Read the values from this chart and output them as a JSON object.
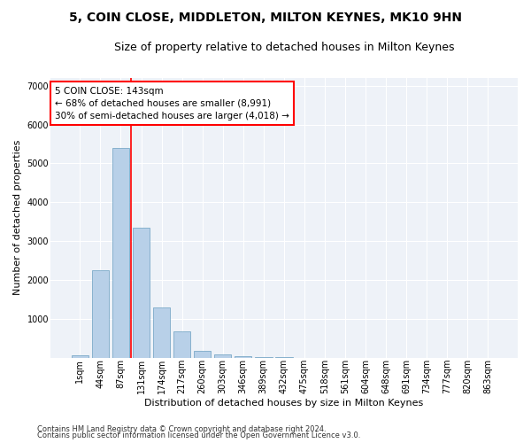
{
  "title": "5, COIN CLOSE, MIDDLETON, MILTON KEYNES, MK10 9HN",
  "subtitle": "Size of property relative to detached houses in Milton Keynes",
  "xlabel": "Distribution of detached houses by size in Milton Keynes",
  "ylabel": "Number of detached properties",
  "footer_line1": "Contains HM Land Registry data © Crown copyright and database right 2024.",
  "footer_line2": "Contains public sector information licensed under the Open Government Licence v3.0.",
  "categories": [
    "1sqm",
    "44sqm",
    "87sqm",
    "131sqm",
    "174sqm",
    "217sqm",
    "260sqm",
    "303sqm",
    "346sqm",
    "389sqm",
    "432sqm",
    "475sqm",
    "518sqm",
    "561sqm",
    "604sqm",
    "648sqm",
    "691sqm",
    "734sqm",
    "777sqm",
    "820sqm",
    "863sqm"
  ],
  "values": [
    50,
    2250,
    5400,
    3350,
    1300,
    680,
    175,
    80,
    30,
    8,
    3,
    1,
    0,
    0,
    0,
    0,
    0,
    0,
    0,
    0,
    0
  ],
  "bar_color": "#b8d0e8",
  "bar_edge_color": "#6a9fc0",
  "vline_color": "red",
  "vline_x_index": 2.5,
  "annotation_text": "5 COIN CLOSE: 143sqm\n← 68% of detached houses are smaller (8,991)\n30% of semi-detached houses are larger (4,018) →",
  "ylim": [
    0,
    7200
  ],
  "yticks": [
    0,
    1000,
    2000,
    3000,
    4000,
    5000,
    6000,
    7000
  ],
  "bg_color": "#eef2f8",
  "grid_color": "#ffffff",
  "title_fontsize": 10,
  "subtitle_fontsize": 9,
  "axis_label_fontsize": 8,
  "tick_fontsize": 7,
  "footer_fontsize": 6,
  "annotation_fontsize": 7.5
}
